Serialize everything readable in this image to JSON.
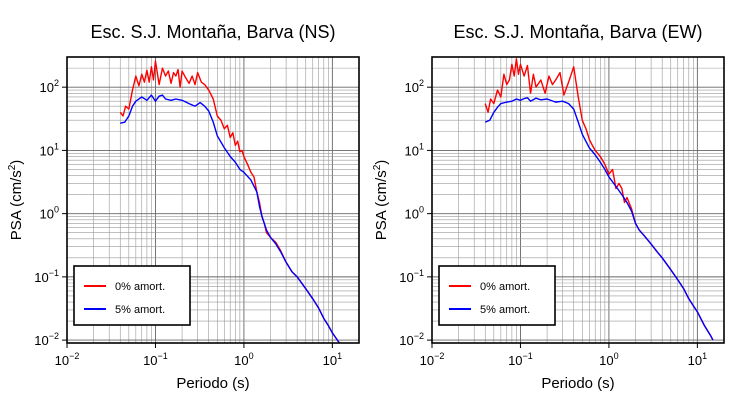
{
  "chart_data": [
    {
      "type": "line",
      "title": "Esc. S.J. Montaña, Barva (NS)",
      "xlabel": "Periodo (s)",
      "ylabel_main": "PSA (cm/s",
      "ylabel_sup": "2",
      "ylabel_end": ")",
      "x_scale": "log",
      "y_scale": "log",
      "xlim": [
        0.01,
        20
      ],
      "ylim": [
        0.009,
        300
      ],
      "grid": true,
      "legend_position": "bottom-left",
      "x_ticks": [
        {
          "value": 0.01,
          "base": "10",
          "exp": "−2"
        },
        {
          "value": 0.1,
          "base": "10",
          "exp": "−1"
        },
        {
          "value": 1,
          "base": "10",
          "exp": "0"
        },
        {
          "value": 10,
          "base": "10",
          "exp": "1"
        }
      ],
      "y_ticks": [
        {
          "value": 0.01,
          "base": "10",
          "exp": "−2"
        },
        {
          "value": 0.1,
          "base": "10",
          "exp": "−1"
        },
        {
          "value": 1,
          "base": "10",
          "exp": "0"
        },
        {
          "value": 10,
          "base": "10",
          "exp": "1"
        },
        {
          "value": 100,
          "base": "10",
          "exp": "2"
        }
      ],
      "series": [
        {
          "name": "0% amort.",
          "color": "#ff0000",
          "points": [
            [
              0.04,
              40
            ],
            [
              0.043,
              35
            ],
            [
              0.046,
              50
            ],
            [
              0.05,
              45
            ],
            [
              0.055,
              90
            ],
            [
              0.06,
              150
            ],
            [
              0.065,
              105
            ],
            [
              0.07,
              160
            ],
            [
              0.075,
              120
            ],
            [
              0.08,
              185
            ],
            [
              0.085,
              120
            ],
            [
              0.09,
              210
            ],
            [
              0.095,
              130
            ],
            [
              0.1,
              260
            ],
            [
              0.11,
              110
            ],
            [
              0.12,
              200
            ],
            [
              0.13,
              150
            ],
            [
              0.14,
              180
            ],
            [
              0.15,
              115
            ],
            [
              0.16,
              170
            ],
            [
              0.17,
              150
            ],
            [
              0.18,
              190
            ],
            [
              0.19,
              100
            ],
            [
              0.2,
              180
            ],
            [
              0.22,
              140
            ],
            [
              0.24,
              115
            ],
            [
              0.26,
              150
            ],
            [
              0.28,
              110
            ],
            [
              0.3,
              170
            ],
            [
              0.33,
              120
            ],
            [
              0.36,
              110
            ],
            [
              0.4,
              90
            ],
            [
              0.45,
              65
            ],
            [
              0.5,
              35
            ],
            [
              0.55,
              30
            ],
            [
              0.6,
              22
            ],
            [
              0.65,
              25
            ],
            [
              0.7,
              16
            ],
            [
              0.75,
              19
            ],
            [
              0.8,
              12
            ],
            [
              0.85,
              14
            ],
            [
              0.9,
              9.5
            ],
            [
              0.95,
              10
            ],
            [
              1.0,
              8
            ],
            [
              1.1,
              6
            ],
            [
              1.2,
              4.5
            ],
            [
              1.3,
              3.8
            ],
            [
              1.4,
              2.2
            ],
            [
              1.5,
              1.5
            ],
            [
              1.6,
              0.9
            ],
            [
              1.7,
              0.7
            ],
            [
              1.8,
              0.5
            ],
            [
              2.0,
              0.42
            ],
            [
              2.3,
              0.35
            ],
            [
              2.6,
              0.26
            ],
            [
              3.0,
              0.17
            ],
            [
              3.5,
              0.12
            ],
            [
              4,
              0.1
            ],
            [
              5,
              0.065
            ],
            [
              6,
              0.045
            ],
            [
              7,
              0.032
            ],
            [
              8,
              0.022
            ],
            [
              9,
              0.017
            ],
            [
              10,
              0.013
            ],
            [
              12,
              0.009
            ]
          ]
        },
        {
          "name": "5% amort.",
          "color": "#0000ff",
          "points": [
            [
              0.04,
              27
            ],
            [
              0.045,
              28
            ],
            [
              0.05,
              35
            ],
            [
              0.055,
              50
            ],
            [
              0.06,
              60
            ],
            [
              0.07,
              70
            ],
            [
              0.08,
              62
            ],
            [
              0.09,
              75
            ],
            [
              0.1,
              60
            ],
            [
              0.11,
              72
            ],
            [
              0.12,
              75
            ],
            [
              0.13,
              65
            ],
            [
              0.15,
              62
            ],
            [
              0.17,
              65
            ],
            [
              0.2,
              62
            ],
            [
              0.24,
              55
            ],
            [
              0.28,
              50
            ],
            [
              0.32,
              57
            ],
            [
              0.36,
              50
            ],
            [
              0.4,
              42
            ],
            [
              0.45,
              28
            ],
            [
              0.5,
              17
            ],
            [
              0.6,
              11
            ],
            [
              0.7,
              8
            ],
            [
              0.8,
              6.5
            ],
            [
              0.9,
              5
            ],
            [
              1.0,
              4.5
            ],
            [
              1.2,
              3.4
            ],
            [
              1.4,
              2.2
            ],
            [
              1.5,
              1.3
            ],
            [
              1.6,
              0.9
            ],
            [
              1.8,
              0.55
            ],
            [
              2.0,
              0.42
            ],
            [
              2.3,
              0.33
            ],
            [
              2.6,
              0.25
            ],
            [
              3.0,
              0.17
            ],
            [
              3.5,
              0.12
            ],
            [
              4,
              0.1
            ],
            [
              5,
              0.065
            ],
            [
              6,
              0.045
            ],
            [
              7,
              0.032
            ],
            [
              8,
              0.022
            ],
            [
              9,
              0.017
            ],
            [
              10,
              0.013
            ],
            [
              12,
              0.009
            ]
          ]
        }
      ]
    },
    {
      "type": "line",
      "title": "Esc. S.J. Montaña, Barva (EW)",
      "xlabel": "Periodo (s)",
      "ylabel_main": "PSA (cm/s",
      "ylabel_sup": "2",
      "ylabel_end": ")",
      "x_scale": "log",
      "y_scale": "log",
      "xlim": [
        0.01,
        20
      ],
      "ylim": [
        0.009,
        300
      ],
      "grid": true,
      "legend_position": "bottom-left",
      "x_ticks": [
        {
          "value": 0.01,
          "base": "10",
          "exp": "−2"
        },
        {
          "value": 0.1,
          "base": "10",
          "exp": "−1"
        },
        {
          "value": 1,
          "base": "10",
          "exp": "0"
        },
        {
          "value": 10,
          "base": "10",
          "exp": "1"
        }
      ],
      "y_ticks": [
        {
          "value": 0.01,
          "base": "10",
          "exp": "−2"
        },
        {
          "value": 0.1,
          "base": "10",
          "exp": "−1"
        },
        {
          "value": 1,
          "base": "10",
          "exp": "0"
        },
        {
          "value": 10,
          "base": "10",
          "exp": "1"
        },
        {
          "value": 100,
          "base": "10",
          "exp": "2"
        }
      ],
      "series": [
        {
          "name": "0% amort.",
          "color": "#ff0000",
          "points": [
            [
              0.04,
              55
            ],
            [
              0.043,
              40
            ],
            [
              0.046,
              65
            ],
            [
              0.05,
              55
            ],
            [
              0.055,
              90
            ],
            [
              0.06,
              70
            ],
            [
              0.065,
              160
            ],
            [
              0.07,
              110
            ],
            [
              0.075,
              130
            ],
            [
              0.08,
              230
            ],
            [
              0.085,
              150
            ],
            [
              0.09,
              280
            ],
            [
              0.095,
              160
            ],
            [
              0.1,
              230
            ],
            [
              0.11,
              150
            ],
            [
              0.12,
              220
            ],
            [
              0.13,
              80
            ],
            [
              0.14,
              160
            ],
            [
              0.15,
              100
            ],
            [
              0.17,
              130
            ],
            [
              0.19,
              80
            ],
            [
              0.21,
              150
            ],
            [
              0.23,
              110
            ],
            [
              0.25,
              130
            ],
            [
              0.28,
              170
            ],
            [
              0.31,
              75
            ],
            [
              0.35,
              120
            ],
            [
              0.4,
              210
            ],
            [
              0.45,
              70
            ],
            [
              0.5,
              30
            ],
            [
              0.55,
              22
            ],
            [
              0.6,
              15
            ],
            [
              0.65,
              12
            ],
            [
              0.7,
              10
            ],
            [
              0.8,
              8
            ],
            [
              0.9,
              6
            ],
            [
              1.0,
              4.2
            ],
            [
              1.1,
              5
            ],
            [
              1.2,
              2.5
            ],
            [
              1.3,
              3
            ],
            [
              1.4,
              2.5
            ],
            [
              1.5,
              1.5
            ],
            [
              1.6,
              1.8
            ],
            [
              1.8,
              1.2
            ],
            [
              2.0,
              0.7
            ],
            [
              2.2,
              0.55
            ],
            [
              2.5,
              0.45
            ],
            [
              3,
              0.33
            ],
            [
              3.5,
              0.25
            ],
            [
              4,
              0.2
            ],
            [
              5,
              0.13
            ],
            [
              6,
              0.09
            ],
            [
              7,
              0.065
            ],
            [
              8,
              0.045
            ],
            [
              9,
              0.035
            ],
            [
              10,
              0.028
            ],
            [
              12,
              0.017
            ],
            [
              14,
              0.012
            ],
            [
              15,
              0.01
            ]
          ]
        },
        {
          "name": "5% amort.",
          "color": "#0000ff",
          "points": [
            [
              0.04,
              28
            ],
            [
              0.045,
              30
            ],
            [
              0.05,
              40
            ],
            [
              0.055,
              48
            ],
            [
              0.06,
              55
            ],
            [
              0.07,
              58
            ],
            [
              0.08,
              60
            ],
            [
              0.09,
              65
            ],
            [
              0.1,
              62
            ],
            [
              0.11,
              66
            ],
            [
              0.12,
              68
            ],
            [
              0.13,
              60
            ],
            [
              0.15,
              67
            ],
            [
              0.17,
              63
            ],
            [
              0.2,
              65
            ],
            [
              0.25,
              58
            ],
            [
              0.3,
              60
            ],
            [
              0.35,
              55
            ],
            [
              0.4,
              45
            ],
            [
              0.45,
              28
            ],
            [
              0.5,
              18
            ],
            [
              0.6,
              11
            ],
            [
              0.7,
              8.5
            ],
            [
              0.8,
              6.5
            ],
            [
              0.9,
              5
            ],
            [
              1.0,
              3.8
            ],
            [
              1.2,
              2.7
            ],
            [
              1.4,
              2.0
            ],
            [
              1.6,
              1.5
            ],
            [
              1.8,
              1.1
            ],
            [
              2.0,
              0.7
            ],
            [
              2.2,
              0.55
            ],
            [
              2.5,
              0.45
            ],
            [
              3,
              0.33
            ],
            [
              3.5,
              0.25
            ],
            [
              4,
              0.2
            ],
            [
              5,
              0.13
            ],
            [
              6,
              0.09
            ],
            [
              7,
              0.065
            ],
            [
              8,
              0.045
            ],
            [
              9,
              0.035
            ],
            [
              10,
              0.028
            ],
            [
              12,
              0.017
            ],
            [
              14,
              0.012
            ],
            [
              15,
              0.01
            ]
          ]
        }
      ]
    }
  ]
}
